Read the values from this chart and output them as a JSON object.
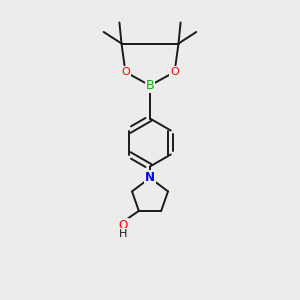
{
  "background_color": "#ececec",
  "bond_color": "#1a1a1a",
  "bond_width": 1.4,
  "atom_colors": {
    "B": "#00bb00",
    "O": "#ff0000",
    "N": "#0000ee",
    "H": "#1a1a1a"
  },
  "figsize": [
    3.0,
    3.0
  ],
  "dpi": 100
}
